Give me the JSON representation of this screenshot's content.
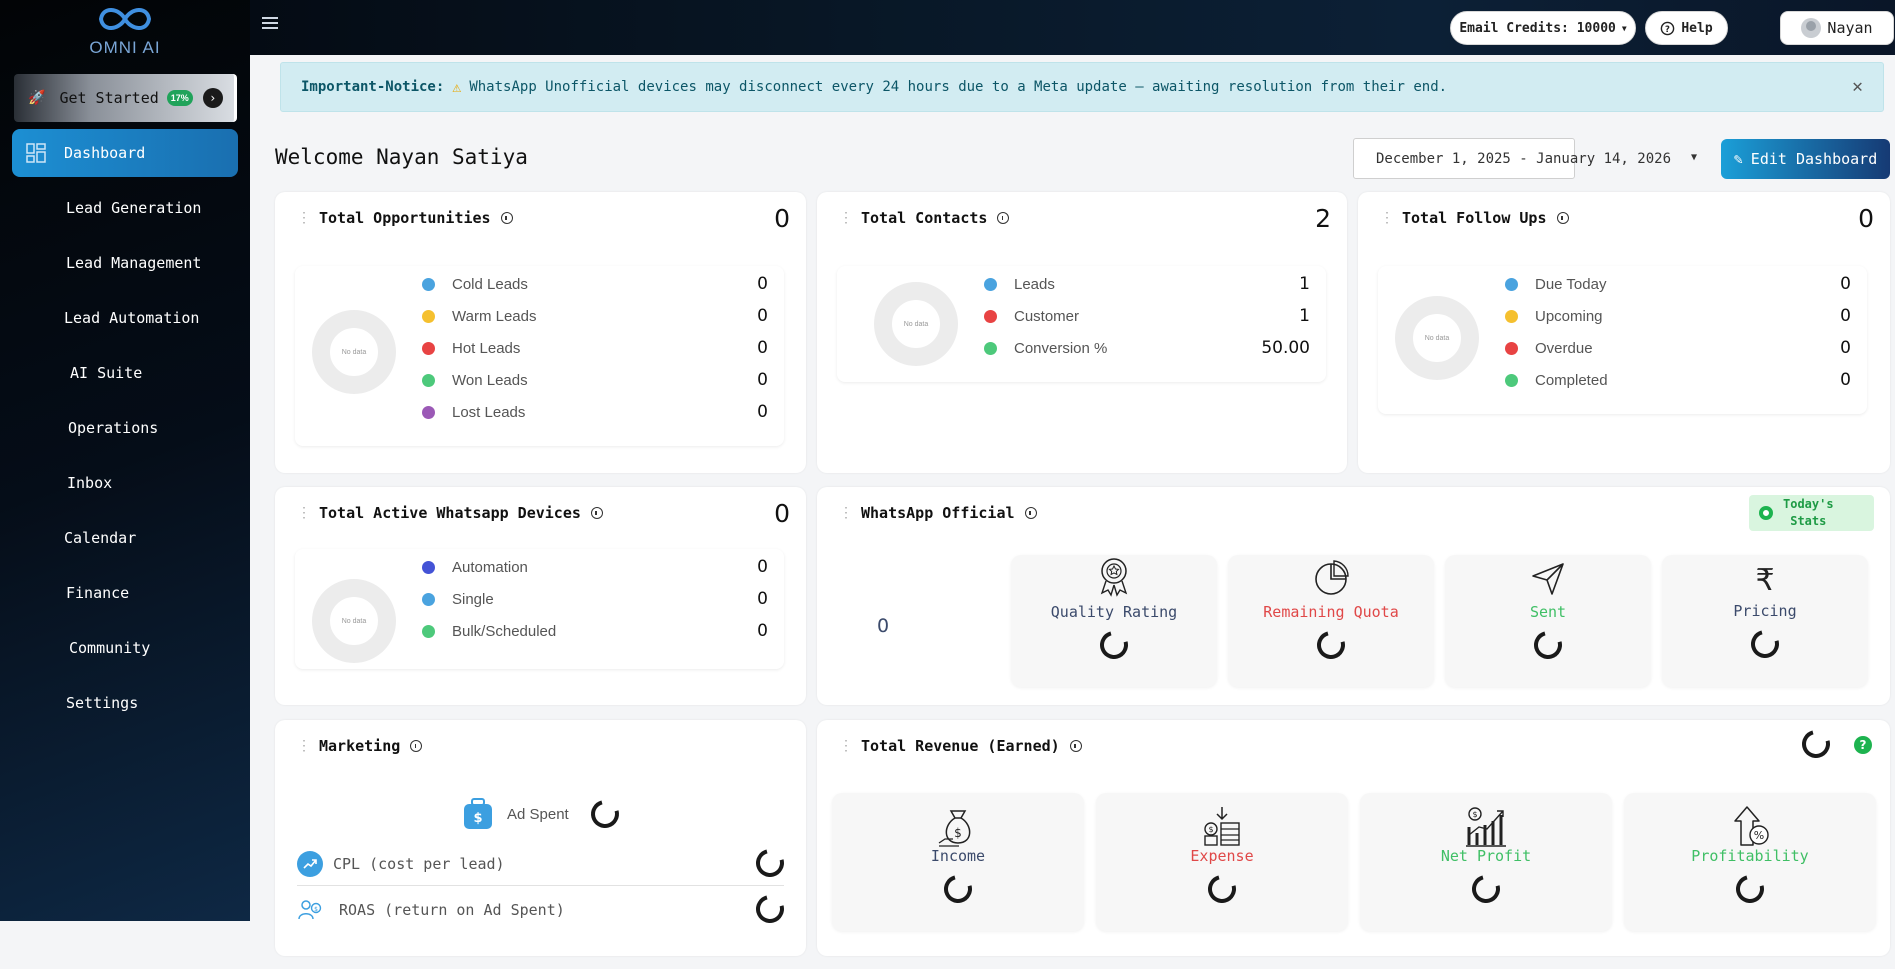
{
  "app": {
    "logo_text": "OMNI AI",
    "email_credits_label": "Email Credits: 10000",
    "help_label": "Help",
    "user_name": "Nayan"
  },
  "sidebar": {
    "get_started_label": "Get Started",
    "get_started_pct": "17%",
    "items": [
      {
        "label": "Dashboard",
        "active": true
      },
      {
        "label": "Lead Generation"
      },
      {
        "label": "Lead Management"
      },
      {
        "label": "Lead Automation"
      },
      {
        "label": "AI Suite"
      },
      {
        "label": "Operations"
      },
      {
        "label": "Inbox"
      },
      {
        "label": "Calendar"
      },
      {
        "label": "Finance"
      },
      {
        "label": "Community"
      },
      {
        "label": "Settings"
      }
    ]
  },
  "notice": {
    "title": "Important-Notice:",
    "text": "WhatsApp Unofficial devices may disconnect every 24 hours due to a Meta update — awaiting resolution from their end."
  },
  "header": {
    "welcome": "Welcome Nayan Satiya",
    "date_range": "December 1, 2025 - January 14, 2026",
    "edit_label": "Edit Dashboard"
  },
  "no_data": "No data",
  "opportunities": {
    "title": "Total Opportunities",
    "count": "0",
    "items": [
      {
        "label": "Cold Leads",
        "value": "0",
        "color": "#4aa3df"
      },
      {
        "label": "Warm Leads",
        "value": "0",
        "color": "#f5c02f"
      },
      {
        "label": "Hot Leads",
        "value": "0",
        "color": "#e84343"
      },
      {
        "label": "Won Leads",
        "value": "0",
        "color": "#4dc97b"
      },
      {
        "label": "Lost Leads",
        "value": "0",
        "color": "#9b59b6"
      }
    ]
  },
  "contacts": {
    "title": "Total Contacts",
    "count": "2",
    "items": [
      {
        "label": "Leads",
        "value": "1",
        "color": "#4aa3df"
      },
      {
        "label": "Customer",
        "value": "1",
        "color": "#e84343"
      },
      {
        "label": "Conversion %",
        "value": "50.00",
        "color": "#4dc97b"
      }
    ]
  },
  "followups": {
    "title": "Total Follow Ups",
    "count": "0",
    "items": [
      {
        "label": "Due Today",
        "value": "0",
        "color": "#4aa3df"
      },
      {
        "label": "Upcoming",
        "value": "0",
        "color": "#f5c02f"
      },
      {
        "label": "Overdue",
        "value": "0",
        "color": "#e84343"
      },
      {
        "label": "Completed",
        "value": "0",
        "color": "#4dc97b"
      }
    ]
  },
  "devices": {
    "title": "Total Active Whatsapp Devices",
    "count": "0",
    "items": [
      {
        "label": "Automation",
        "value": "0",
        "color": "#4453d6"
      },
      {
        "label": "Single",
        "value": "0",
        "color": "#4aa3df"
      },
      {
        "label": "Bulk/Scheduled",
        "value": "0",
        "color": "#4dc97b"
      }
    ]
  },
  "whatsapp_official": {
    "title": "WhatsApp Official",
    "badge_line1": "Today's",
    "badge_line2": "Stats",
    "value": "0",
    "stats": [
      {
        "label": "Quality Rating",
        "color": "#3b4a6b",
        "icon": "award-icon"
      },
      {
        "label": "Remaining Quota",
        "color": "#e04848",
        "icon": "pie-chart-icon"
      },
      {
        "label": "Sent",
        "color": "#3fbf65",
        "icon": "send-icon"
      },
      {
        "label": "Pricing",
        "color": "#3b4a6b",
        "icon": "rupee-icon"
      }
    ]
  },
  "marketing": {
    "title": "Marketing",
    "ad_spent": "Ad Spent",
    "cpl": "CPL (cost per lead)",
    "roas": "ROAS (return on Ad Spent)"
  },
  "revenue": {
    "title": "Total Revenue (Earned)",
    "help_mark": "?",
    "stats": [
      {
        "label": "Income",
        "color": "#3b4a6b",
        "icon": "money-bag-icon"
      },
      {
        "label": "Expense",
        "color": "#e04848",
        "icon": "coins-icon"
      },
      {
        "label": "Net Profit",
        "color": "#3fbf65",
        "icon": "growth-chart-icon"
      },
      {
        "label": "Profitability",
        "color": "#3fbf65",
        "icon": "percent-arrow-icon"
      }
    ]
  }
}
